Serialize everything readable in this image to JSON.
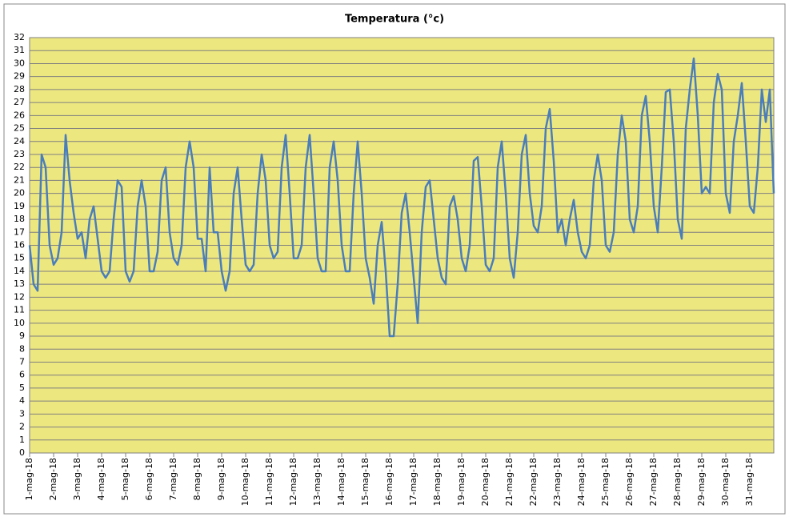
{
  "chart_data": {
    "type": "line",
    "title": "Temperatura (°c)",
    "categories": [
      "1-mag-18",
      null,
      null,
      null,
      null,
      null,
      "2-mag-18",
      null,
      null,
      null,
      null,
      null,
      "3-mag-18",
      null,
      null,
      null,
      null,
      null,
      "4-mag-18",
      null,
      null,
      null,
      null,
      null,
      "5-mag-18",
      null,
      null,
      null,
      null,
      null,
      "6-mag-18",
      null,
      null,
      null,
      null,
      null,
      "7-mag-18",
      null,
      null,
      null,
      null,
      null,
      "8-mag-18",
      null,
      null,
      null,
      null,
      null,
      "9-mag-18",
      null,
      null,
      null,
      null,
      null,
      "10-mag-18",
      null,
      null,
      null,
      null,
      null,
      "11-mag-18",
      null,
      null,
      null,
      null,
      null,
      "12-mag-18",
      null,
      null,
      null,
      null,
      null,
      "13-mag-18",
      null,
      null,
      null,
      null,
      null,
      "14-mag-18",
      null,
      null,
      null,
      null,
      null,
      "15-mag-18",
      null,
      null,
      null,
      null,
      null,
      "16-mag-18",
      null,
      null,
      null,
      null,
      null,
      "17-mag-18",
      null,
      null,
      null,
      null,
      null,
      "18-mag-18",
      null,
      null,
      null,
      null,
      null,
      "19-mag-18",
      null,
      null,
      null,
      null,
      null,
      "20-mag-18",
      null,
      null,
      null,
      null,
      null,
      "21-mag-18",
      null,
      null,
      null,
      null,
      null,
      "22-mag-18",
      null,
      null,
      null,
      null,
      null,
      "23-mag-18",
      null,
      null,
      null,
      null,
      null,
      "24-mag-18",
      null,
      null,
      null,
      null,
      null,
      "25-mag-18",
      null,
      null,
      null,
      null,
      null,
      "26-mag-18",
      null,
      null,
      null,
      null,
      null,
      "27-mag-18",
      null,
      null,
      null,
      null,
      null,
      "28-mag-18",
      null,
      null,
      null,
      null,
      null,
      "29-mag-18",
      null,
      null,
      null,
      null,
      null,
      "30-mag-18",
      null,
      null,
      null,
      null,
      null,
      "31-mag-18",
      null,
      null,
      null,
      null,
      null,
      null
    ],
    "values": [
      16,
      13,
      12.5,
      23,
      22,
      16,
      14.5,
      15,
      17,
      24.5,
      21,
      18.5,
      16.5,
      17,
      15,
      18,
      19,
      16.5,
      14,
      13.5,
      14,
      18,
      21,
      20.5,
      14,
      13.2,
      14,
      19,
      21,
      19,
      14,
      14,
      15.5,
      21,
      22,
      17,
      15,
      14.5,
      16,
      22,
      24,
      22,
      16.5,
      16.5,
      14,
      22,
      17,
      17,
      14,
      12.5,
      14,
      20,
      22,
      18,
      14.5,
      14,
      14.5,
      20,
      23,
      21,
      16,
      15,
      15.5,
      22,
      24.5,
      20,
      15,
      15,
      16,
      22,
      24.5,
      20,
      15,
      14,
      14,
      22,
      24,
      21,
      16,
      14,
      14,
      20,
      24,
      20,
      15,
      13.5,
      11.5,
      16,
      17.8,
      14,
      9,
      9,
      13,
      18.5,
      20,
      17,
      13.5,
      10,
      17,
      20.5,
      21,
      18,
      15,
      13.5,
      13,
      19,
      19.8,
      18,
      15,
      14,
      16,
      22.5,
      22.8,
      19,
      14.5,
      14,
      15,
      22,
      24,
      20,
      15,
      13.5,
      17,
      23,
      24.5,
      20,
      17.5,
      17,
      19,
      25,
      26.5,
      22.5,
      17,
      18,
      16,
      18,
      19.5,
      17,
      15.5,
      15,
      16,
      21,
      23,
      21,
      16,
      15.5,
      17,
      23,
      26,
      24,
      18,
      17,
      19,
      26,
      27.5,
      24,
      19,
      17,
      22,
      27.8,
      28,
      24,
      18,
      16.5,
      25,
      28,
      30.4,
      26,
      20,
      20.5,
      20,
      27,
      29.2,
      28,
      20,
      18.5,
      24,
      26,
      28.5,
      24,
      19,
      18.5,
      22,
      28,
      25.5,
      28,
      20
    ],
    "color": "#4a7ebb",
    "background": "#ede780",
    "ylim": [
      0,
      32
    ],
    "yticks": [
      0,
      1,
      2,
      3,
      4,
      5,
      6,
      7,
      8,
      9,
      10,
      11,
      12,
      13,
      14,
      15,
      16,
      17,
      18,
      19,
      20,
      21,
      22,
      23,
      24,
      25,
      26,
      27,
      28,
      29,
      30,
      31,
      32
    ],
    "grid": true
  }
}
